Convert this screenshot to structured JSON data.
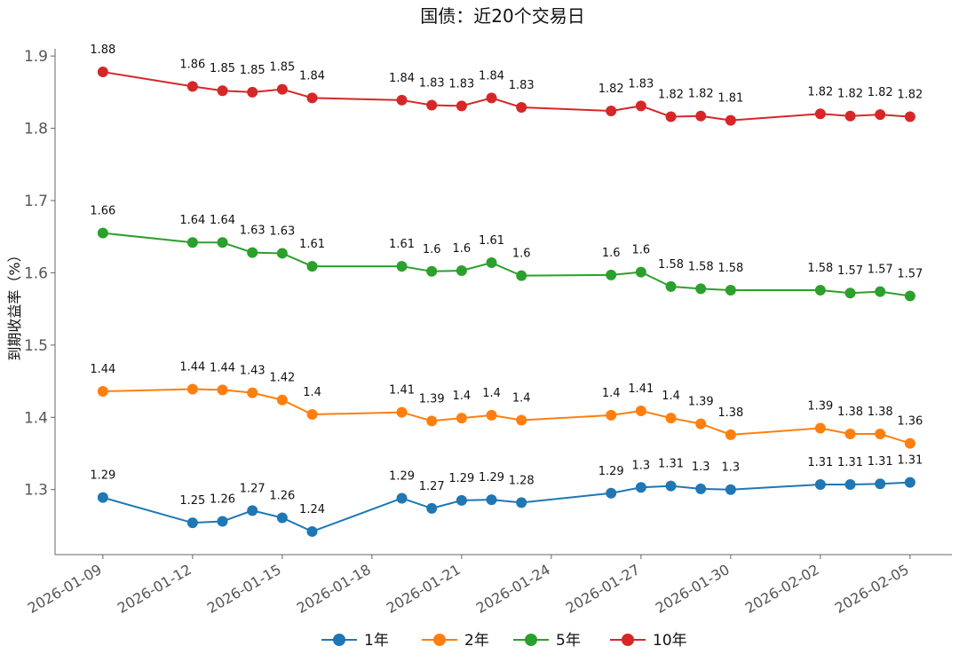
{
  "chart_data": {
    "type": "line",
    "title": "国债：近20个交易日",
    "xlabel": "",
    "ylabel": "到期收益率（%）",
    "ylim": [
      1.21,
      1.91
    ],
    "yticks": [
      1.3,
      1.4,
      1.5,
      1.6,
      1.7,
      1.8,
      1.9
    ],
    "ytick_labels": [
      "1.3",
      "1.4",
      "1.5",
      "1.6",
      "1.7",
      "1.8",
      "1.9"
    ],
    "xlim_days": [
      -1.6,
      28.4
    ],
    "xticks": [
      {
        "label": "2026-01-09",
        "day": 0
      },
      {
        "label": "2026-01-12",
        "day": 3
      },
      {
        "label": "2026-01-15",
        "day": 6
      },
      {
        "label": "2026-01-18",
        "day": 9
      },
      {
        "label": "2026-01-21",
        "day": 12
      },
      {
        "label": "2026-01-24",
        "day": 15
      },
      {
        "label": "2026-01-27",
        "day": 18
      },
      {
        "label": "2026-01-30",
        "day": 21
      },
      {
        "label": "2026-02-02",
        "day": 24
      },
      {
        "label": "2026-02-05",
        "day": 27
      }
    ],
    "x_days": [
      0,
      3,
      4,
      5,
      6,
      7,
      10,
      11,
      12,
      13,
      14,
      17,
      18,
      19,
      20,
      21,
      24,
      25,
      26,
      27
    ],
    "dates": [
      "2026-01-09",
      "2026-01-12",
      "2026-01-13",
      "2026-01-14",
      "2026-01-15",
      "2026-01-16",
      "2026-01-19",
      "2026-01-20",
      "2026-01-21",
      "2026-01-22",
      "2026-01-23",
      "2026-01-26",
      "2026-01-27",
      "2026-01-28",
      "2026-01-29",
      "2026-01-30",
      "2026-02-02",
      "2026-02-03",
      "2026-02-04",
      "2026-02-05"
    ],
    "legend_position": "bottom-center",
    "series": [
      {
        "name": "1年",
        "color": "#1f77b4",
        "values": [
          1.289,
          1.254,
          1.256,
          1.271,
          1.261,
          1.242,
          1.288,
          1.274,
          1.285,
          1.286,
          1.282,
          1.295,
          1.303,
          1.305,
          1.301,
          1.3,
          1.307,
          1.307,
          1.308,
          1.31
        ],
        "labels": [
          "1.29",
          "1.25",
          "1.26",
          "1.27",
          "1.26",
          "1.24",
          "1.29",
          "1.27",
          "1.29",
          "1.29",
          "1.28",
          "1.29",
          "1.3",
          "1.31",
          "1.3",
          "1.3",
          "1.31",
          "1.31",
          "1.31",
          "1.31"
        ]
      },
      {
        "name": "2年",
        "color": "#ff7f0e",
        "values": [
          1.436,
          1.439,
          1.438,
          1.434,
          1.424,
          1.404,
          1.407,
          1.395,
          1.399,
          1.403,
          1.396,
          1.403,
          1.409,
          1.399,
          1.391,
          1.376,
          1.385,
          1.377,
          1.377,
          1.364
        ],
        "labels": [
          "1.44",
          "1.44",
          "1.44",
          "1.43",
          "1.42",
          "1.4",
          "1.41",
          "1.39",
          "1.4",
          "1.4",
          "1.4",
          "1.4",
          "1.41",
          "1.4",
          "1.39",
          "1.38",
          "1.39",
          "1.38",
          "1.38",
          "1.36"
        ]
      },
      {
        "name": "5年",
        "color": "#2ca02c",
        "values": [
          1.655,
          1.642,
          1.642,
          1.628,
          1.627,
          1.609,
          1.609,
          1.602,
          1.603,
          1.614,
          1.596,
          1.597,
          1.601,
          1.581,
          1.578,
          1.576,
          1.576,
          1.572,
          1.574,
          1.568
        ],
        "labels": [
          "1.66",
          "1.64",
          "1.64",
          "1.63",
          "1.63",
          "1.61",
          "1.61",
          "1.6",
          "1.6",
          "1.61",
          "1.6",
          "1.6",
          "1.6",
          "1.58",
          "1.58",
          "1.58",
          "1.58",
          "1.57",
          "1.57",
          "1.57"
        ]
      },
      {
        "name": "10年",
        "color": "#d62728",
        "values": [
          1.878,
          1.858,
          1.852,
          1.85,
          1.854,
          1.842,
          1.839,
          1.832,
          1.831,
          1.842,
          1.829,
          1.824,
          1.831,
          1.816,
          1.817,
          1.811,
          1.82,
          1.817,
          1.819,
          1.816
        ],
        "labels": [
          "1.88",
          "1.86",
          "1.85",
          "1.85",
          "1.85",
          "1.84",
          "1.84",
          "1.83",
          "1.83",
          "1.84",
          "1.83",
          "1.82",
          "1.83",
          "1.82",
          "1.82",
          "1.81",
          "1.82",
          "1.82",
          "1.82",
          "1.82"
        ]
      }
    ]
  }
}
